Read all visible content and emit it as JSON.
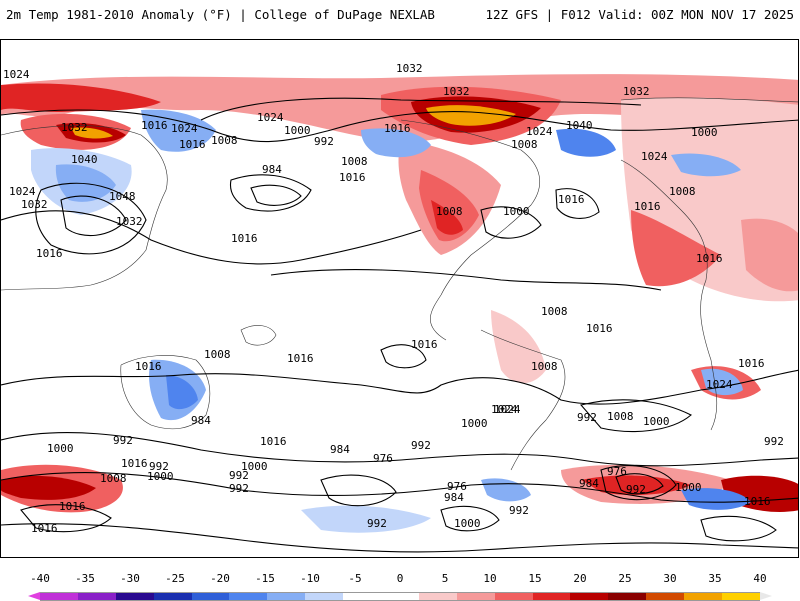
{
  "header": {
    "title": "2m Temp 1981-2010 Anomaly (°F) | College of DuPage NEXLAB",
    "run_info": "12Z GFS | F012 Valid: 00Z MON NOV 17 2025"
  },
  "colorbar": {
    "ticks": [
      "-40",
      "-35",
      "-30",
      "-25",
      "-20",
      "-15",
      "-10",
      "-5",
      "0",
      "5",
      "10",
      "15",
      "20",
      "25",
      "30",
      "35",
      "40"
    ],
    "colors": [
      "#e040e0",
      "#c030d8",
      "#8a20c8",
      "#2a0a90",
      "#1a2fb0",
      "#2f5fd8",
      "#4f84ee",
      "#86aef4",
      "#c2d6fa",
      "#ffffff",
      "#ffffff",
      "#f9c9c9",
      "#f59a9a",
      "#f06060",
      "#e02424",
      "#b80000",
      "#8a0000",
      "#d24a00",
      "#f2a200",
      "#ffd000",
      "#e8e8e8"
    ]
  },
  "map": {
    "isobar_labels": [
      "1024",
      "1032",
      "1032",
      "1032",
      "1024",
      "1040",
      "1024",
      "1032",
      "1016",
      "1024",
      "1008",
      "1000",
      "992",
      "1016",
      "1008",
      "984",
      "1008",
      "1016",
      "1016",
      "1008",
      "1000",
      "1016",
      "1040",
      "1048",
      "1024",
      "1032",
      "1032",
      "1016",
      "1024",
      "1000",
      "1008",
      "1016",
      "1016",
      "1016",
      "1016",
      "1016",
      "1008",
      "1016",
      "1008",
      "1008",
      "1016",
      "1016",
      "1024",
      "984",
      "1024",
      "1016",
      "1000",
      "992",
      "992",
      "1000",
      "1008",
      "992",
      "984",
      "976",
      "992",
      "1000",
      "1024",
      "992",
      "1008",
      "1000",
      "976",
      "984",
      "992",
      "1000",
      "992",
      "1016",
      "1016",
      "1016",
      "992",
      "984",
      "976",
      "992",
      "1000",
      "992",
      "1000",
      "1016"
    ]
  }
}
